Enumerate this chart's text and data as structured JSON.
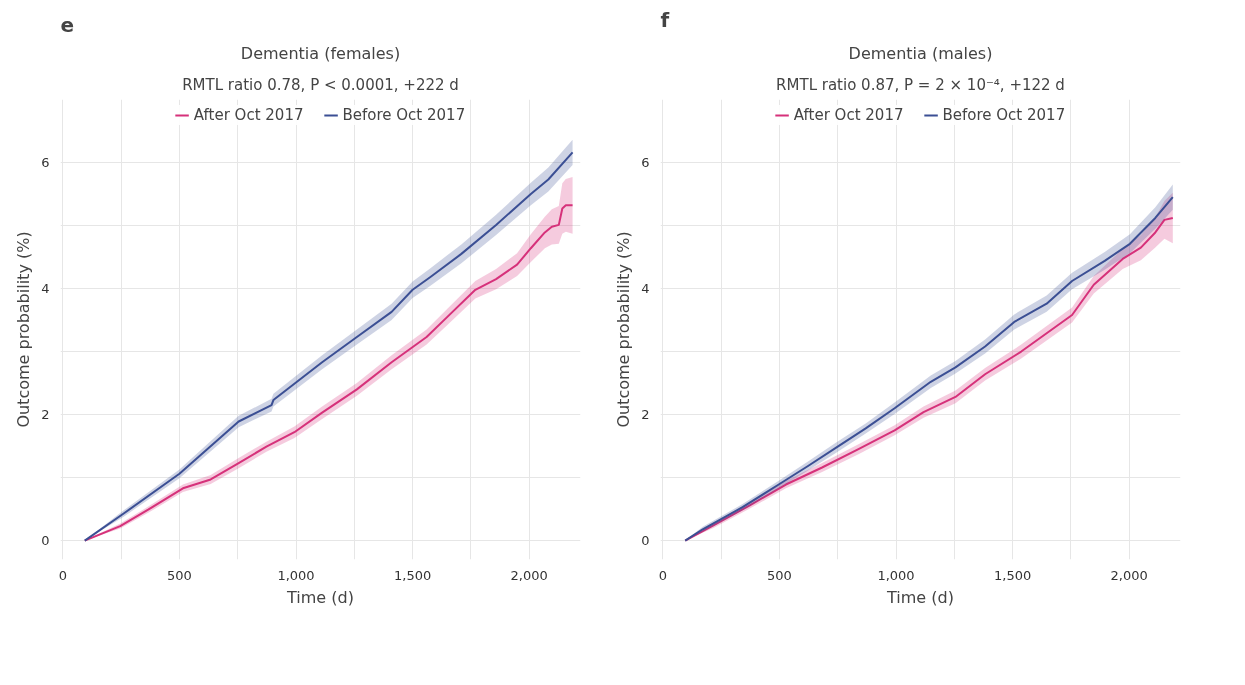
{
  "chart_data": [
    {
      "type": "line",
      "title": "Dementia (females)",
      "subtitle": "RMTL ratio 0.78, P < 0.0001, +222 d",
      "annotations": [
        "e"
      ],
      "xlabel": "Time (d)",
      "ylabel": "Outcome probability (%)",
      "xlim": [
        -10,
        2220
      ],
      "xticks": [
        0,
        {
          "value": 250,
          "label": null
        },
        500,
        {
          "value": 750,
          "label": null
        },
        {
          "value": 1000,
          "label": "1,000"
        },
        {
          "value": 1250,
          "label": null
        },
        {
          "value": 1500,
          "label": "1,500"
        },
        {
          "value": 1750,
          "label": null
        },
        {
          "value": 2000,
          "label": "2,000"
        }
      ],
      "ylim": [
        -0.3,
        7
      ],
      "yticks": [
        0,
        {
          "value": 1,
          "label": null
        },
        2,
        {
          "value": 3,
          "label": null
        },
        4,
        {
          "value": 5,
          "label": null
        },
        6
      ],
      "grid": true,
      "legend": "top",
      "series": [
        {
          "name": "After Oct 2017",
          "color": "#d6317a",
          "x": [
            94,
            246,
            366,
            515,
            634,
            754,
            873,
            993,
            1112,
            1261,
            1410,
            1560,
            1649,
            1769,
            1858,
            1948,
            2007,
            2067,
            2097,
            2127,
            2142,
            2157,
            2186
          ],
          "values": [
            0,
            0.23,
            0.49,
            0.83,
            0.97,
            1.23,
            1.49,
            1.72,
            2.03,
            2.4,
            2.83,
            3.23,
            3.55,
            3.98,
            4.15,
            4.38,
            4.64,
            4.89,
            4.98,
            5.01,
            5.27,
            5.32,
            5.32
          ],
          "lower": [
            0,
            0.19,
            0.44,
            0.77,
            0.9,
            1.15,
            1.41,
            1.63,
            1.93,
            2.3,
            2.72,
            3.11,
            3.42,
            3.84,
            3.99,
            4.2,
            4.42,
            4.64,
            4.7,
            4.71,
            4.87,
            4.9,
            4.87
          ],
          "upper": [
            0,
            0.27,
            0.54,
            0.89,
            1.04,
            1.31,
            1.57,
            1.81,
            2.13,
            2.5,
            2.94,
            3.35,
            3.68,
            4.12,
            4.31,
            4.56,
            4.86,
            5.14,
            5.26,
            5.31,
            5.67,
            5.74,
            5.77
          ]
        },
        {
          "name": "Before Oct 2017",
          "color": "#3b4f94",
          "x": [
            94,
            261,
            500,
            754,
            895,
            903,
            1112,
            1261,
            1410,
            1500,
            1575,
            1709,
            1858,
            2007,
            2082,
            2186
          ],
          "values": [
            0,
            0.43,
            1.06,
            1.89,
            2.15,
            2.23,
            2.83,
            3.23,
            3.63,
            3.98,
            4.18,
            4.55,
            5.01,
            5.5,
            5.73,
            6.16
          ],
          "lower": [
            0,
            0.38,
            0.99,
            1.8,
            2.05,
            2.13,
            2.72,
            3.11,
            3.5,
            3.85,
            4.04,
            4.4,
            4.85,
            5.32,
            5.54,
            5.96
          ],
          "upper": [
            0,
            0.48,
            1.13,
            1.98,
            2.25,
            2.33,
            2.94,
            3.35,
            3.76,
            4.11,
            4.32,
            4.7,
            5.17,
            5.68,
            5.92,
            6.36
          ]
        }
      ]
    },
    {
      "type": "line",
      "title": "Dementia (males)",
      "subtitle": "RMTL ratio 0.87, P = 2 × 10⁻⁴, +122 d",
      "annotations": [
        "f"
      ],
      "xlabel": "Time (d)",
      "ylabel": "Outcome probability (%)",
      "xlim": [
        -10,
        2220
      ],
      "xticks": [
        0,
        {
          "value": 250,
          "label": null
        },
        500,
        {
          "value": 750,
          "label": null
        },
        {
          "value": 1000,
          "label": "1,000"
        },
        {
          "value": 1250,
          "label": null
        },
        {
          "value": 1500,
          "label": "1,500"
        },
        {
          "value": 1750,
          "label": null
        },
        {
          "value": 2000,
          "label": "2,000"
        }
      ],
      "ylim": [
        -0.3,
        7
      ],
      "yticks": [
        0,
        {
          "value": 1,
          "label": null
        },
        2,
        {
          "value": 3,
          "label": null
        },
        4,
        {
          "value": 5,
          "label": null
        },
        6
      ],
      "grid": true,
      "legend": "top",
      "series": [
        {
          "name": "After Oct 2017",
          "color": "#d6317a",
          "x": [
            96,
            217,
            373,
            528,
            683,
            839,
            994,
            1118,
            1255,
            1382,
            1537,
            1755,
            1848,
            1972,
            2050,
            2112,
            2151,
            2187
          ],
          "values": [
            0,
            0.24,
            0.56,
            0.89,
            1.16,
            1.45,
            1.75,
            2.04,
            2.28,
            2.64,
            3.0,
            3.58,
            4.06,
            4.47,
            4.65,
            4.89,
            5.09,
            5.12
          ],
          "lower": [
            0,
            0.2,
            0.51,
            0.83,
            1.09,
            1.37,
            1.67,
            1.95,
            2.18,
            2.54,
            2.89,
            3.46,
            3.92,
            4.31,
            4.45,
            4.65,
            4.79,
            4.72
          ],
          "upper": [
            0,
            0.28,
            0.61,
            0.95,
            1.23,
            1.53,
            1.83,
            2.13,
            2.38,
            2.74,
            3.11,
            3.7,
            4.2,
            4.63,
            4.85,
            5.13,
            5.39,
            5.52
          ]
        },
        {
          "name": "Before Oct 2017",
          "color": "#3b4f94",
          "x": [
            96,
            171,
            342,
            497,
            621,
            745,
            870,
            994,
            1149,
            1255,
            1382,
            1507,
            1646,
            1755,
            1895,
            2003,
            2112,
            2187
          ],
          "values": [
            0,
            0.18,
            0.53,
            0.89,
            1.18,
            1.48,
            1.78,
            2.1,
            2.52,
            2.75,
            3.08,
            3.47,
            3.76,
            4.12,
            4.44,
            4.71,
            5.12,
            5.45
          ],
          "lower": [
            0,
            0.14,
            0.48,
            0.83,
            1.11,
            1.4,
            1.7,
            2.01,
            2.42,
            2.65,
            2.97,
            3.35,
            3.63,
            3.99,
            4.3,
            4.56,
            4.95,
            5.25
          ],
          "upper": [
            0,
            0.22,
            0.58,
            0.95,
            1.25,
            1.56,
            1.86,
            2.19,
            2.62,
            2.85,
            3.19,
            3.59,
            3.89,
            4.25,
            4.58,
            4.86,
            5.29,
            5.65
          ]
        }
      ]
    }
  ]
}
